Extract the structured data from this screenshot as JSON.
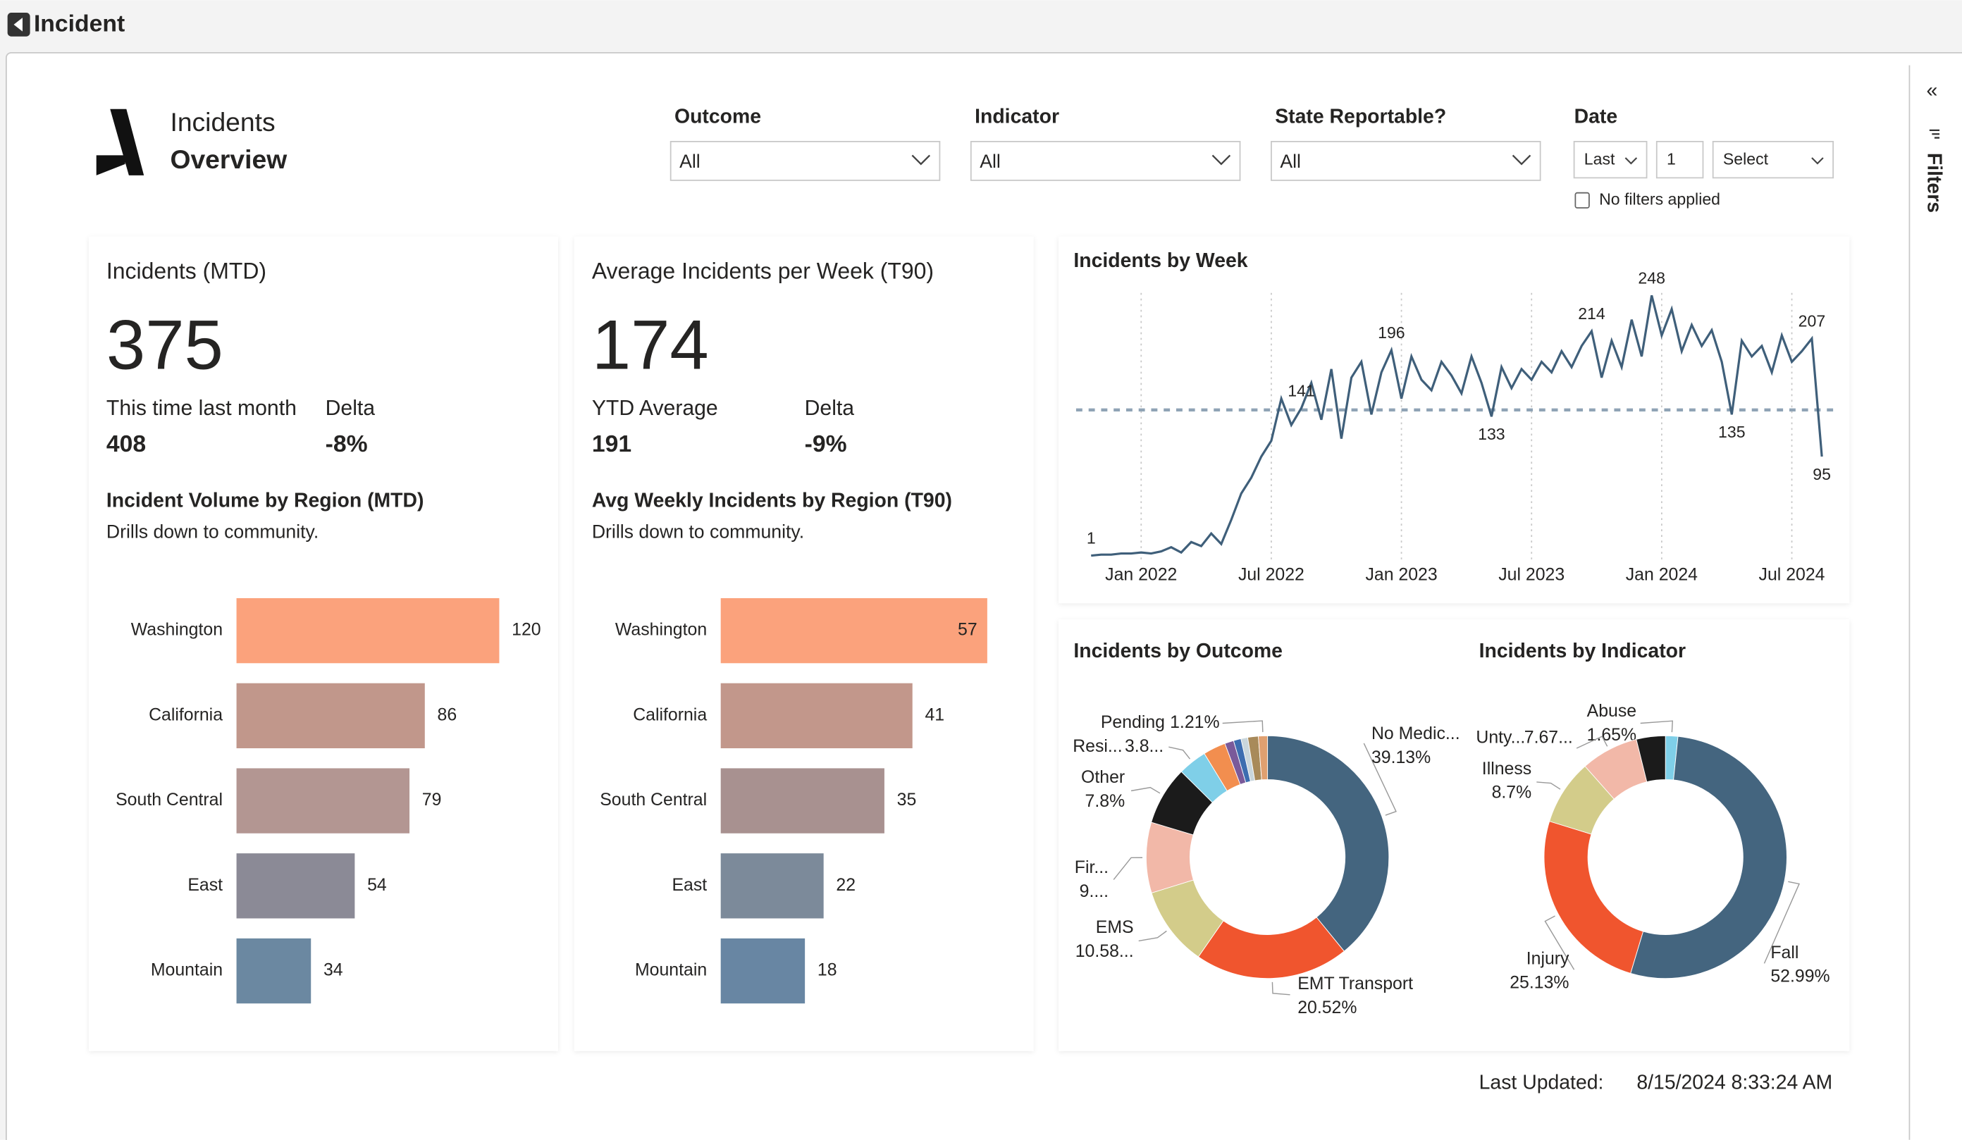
{
  "header": {
    "title": "Incident"
  },
  "report": {
    "title_line1": "Incidents",
    "title_line2": "Overview"
  },
  "filters": [
    {
      "label": "Outcome",
      "value": "All"
    },
    {
      "label": "Indicator",
      "value": "All"
    },
    {
      "label": "State Reportable?",
      "value": "All"
    }
  ],
  "date_filter": {
    "label": "Date",
    "period": "Last",
    "count": "1",
    "unit": "Select",
    "status": "No filters applied"
  },
  "sidebar": {
    "collapse": "«",
    "title": "Filters"
  },
  "cards": [
    {
      "title": "Incidents (MTD)",
      "value": "375",
      "compare_label": "This time last month",
      "compare_value": "408",
      "delta_label": "Delta",
      "delta_value": "-8%"
    },
    {
      "title": "Average Incidents per Week (T90)",
      "value": "174",
      "compare_label": "YTD Average",
      "compare_value": "191",
      "delta_label": "Delta",
      "delta_value": "-9%"
    }
  ],
  "last_updated": {
    "label": "Last Updated:",
    "value": "8/15/2024 8:33:24 AM"
  },
  "chart_data": [
    {
      "type": "hbar",
      "title": "Incident Volume by Region (MTD)",
      "subtitle": "Drills down to community.",
      "categories": [
        "Washington",
        "California",
        "South Central",
        "East",
        "Mountain"
      ],
      "values": [
        120,
        86,
        79,
        54,
        34
      ],
      "colors": [
        "#fba27c",
        "#c1978b",
        "#b39692",
        "#8b8a96",
        "#6b88a1"
      ]
    },
    {
      "type": "hbar",
      "title": "Avg Weekly Incidents by Region (T90)",
      "subtitle": "Drills down to community.",
      "categories": [
        "Washington",
        "California",
        "South Central",
        "East",
        "Mountain"
      ],
      "values": [
        57,
        41,
        35,
        22,
        18
      ],
      "colors": [
        "#fba27c",
        "#c2978b",
        "#a89190",
        "#7c8a9a",
        "#6886a3"
      ]
    },
    {
      "type": "line",
      "title": "Incidents by Week",
      "color": "#3f5f7a",
      "categories": [
        null,
        null,
        null,
        null,
        null,
        "Jan 2022",
        null,
        null,
        null,
        null,
        null,
        null,
        null,
        null,
        null,
        null,
        null,
        null,
        "Jul 2022",
        null,
        null,
        null,
        null,
        null,
        null,
        null,
        null,
        null,
        null,
        null,
        null,
        "Jan 2023",
        null,
        null,
        null,
        null,
        null,
        null,
        null,
        null,
        null,
        null,
        null,
        null,
        "Jul 2023",
        null,
        null,
        null,
        null,
        null,
        null,
        null,
        null,
        null,
        null,
        null,
        null,
        "Jan 2024",
        null,
        null,
        null,
        null,
        null,
        null,
        null,
        null,
        null,
        null,
        null,
        null,
        "Jul 2024",
        null,
        null,
        null
      ],
      "values": [
        1,
        2,
        2,
        3,
        3,
        4,
        3,
        5,
        9,
        4,
        14,
        10,
        22,
        12,
        35,
        60,
        75,
        95,
        110,
        150,
        125,
        141,
        165,
        130,
        178,
        112,
        170,
        185,
        135,
        175,
        196,
        150,
        190,
        168,
        158,
        185,
        172,
        155,
        190,
        165,
        133,
        180,
        160,
        178,
        168,
        185,
        175,
        195,
        180,
        200,
        214,
        170,
        205,
        180,
        225,
        190,
        248,
        210,
        235,
        195,
        220,
        200,
        215,
        185,
        135,
        205,
        190,
        200,
        175,
        210,
        185,
        195,
        207,
        95
      ],
      "value_labels": [
        "1",
        null,
        null,
        null,
        null,
        null,
        null,
        null,
        null,
        null,
        null,
        null,
        null,
        null,
        null,
        null,
        null,
        null,
        null,
        null,
        null,
        "141",
        null,
        null,
        null,
        null,
        null,
        null,
        null,
        null,
        "196",
        null,
        null,
        null,
        null,
        null,
        null,
        null,
        null,
        null,
        "133",
        null,
        null,
        null,
        null,
        null,
        null,
        null,
        null,
        null,
        "214",
        null,
        null,
        null,
        null,
        null,
        "248",
        null,
        null,
        null,
        null,
        null,
        null,
        null,
        "135",
        null,
        null,
        null,
        null,
        null,
        null,
        null,
        "207",
        "95"
      ]
    },
    {
      "type": "donut",
      "title": "Incidents by Outcome",
      "categories": [
        "No Medic...",
        "EMT Transport",
        "EMS",
        "Fir...",
        "Other",
        "Resi...",
        null,
        null,
        null,
        null,
        null,
        "Pending"
      ],
      "values": [
        39.13,
        20.52,
        10.58,
        9.4,
        7.8,
        3.85,
        3.0,
        1.2,
        1.0,
        0.9,
        1.41,
        1.21
      ],
      "value_labels": [
        "39.13%",
        "20.52%",
        "10.58...",
        "9....",
        "7.8%",
        "3.8...",
        null,
        null,
        null,
        null,
        null,
        "1.21%"
      ],
      "colors": [
        "#44657f",
        "#f0552e",
        "#d3cc8a",
        "#f2b8a8",
        "#1b1b1b",
        "#7fcfe8",
        "#f28e4f",
        "#7a5a9a",
        "#3c6db0",
        "#c9d6dc",
        "#a88a5a",
        "#e0a070"
      ]
    },
    {
      "type": "donut",
      "title": "Incidents by Indicator",
      "categories": [
        "Abuse",
        "Fall",
        "Injury",
        "Illness",
        "Unty...",
        null
      ],
      "values": [
        1.65,
        52.99,
        25.13,
        8.7,
        7.67,
        3.86
      ],
      "value_labels": [
        "1.65%",
        "52.99%",
        "25.13%",
        "8.7%",
        "7.67...",
        null
      ],
      "colors": [
        "#7fcfe8",
        "#44657f",
        "#f0552e",
        "#d3cc8a",
        "#f2b8a8",
        "#1b1b1b"
      ]
    }
  ]
}
